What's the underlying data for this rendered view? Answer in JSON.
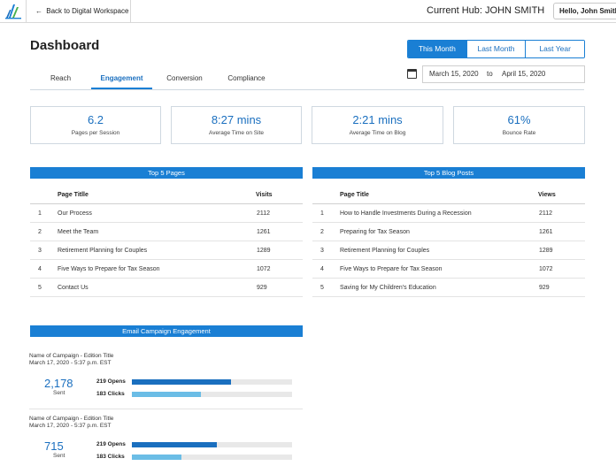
{
  "topbar": {
    "back_label": "Back to Digital Workspace",
    "hub_label": "Current Hub: JOHN SMITH",
    "user_label": "Hello, John Smith!"
  },
  "page": {
    "title": "Dashboard"
  },
  "range_toggle": {
    "options": [
      "This Month",
      "Last Month",
      "Last Year"
    ],
    "active": "This Month"
  },
  "tabs": {
    "items": [
      "Reach",
      "Engagement",
      "Conversion",
      "Compliance"
    ],
    "active": "Engagement"
  },
  "date_range": {
    "start": "March 15, 2020",
    "separator": "to",
    "end": "April 15, 2020"
  },
  "kpis": [
    {
      "value": "6.2",
      "label": "Pages per Session"
    },
    {
      "value": "8:27 mins",
      "label": "Average Time on Site"
    },
    {
      "value": "2:21 mins",
      "label": "Average Time on Blog"
    },
    {
      "value": "61%",
      "label": "Bounce Rate"
    }
  ],
  "top_pages": {
    "title": "Top 5 Pages",
    "col_title": "Page Titlle",
    "col_value": "Visits",
    "rows": [
      {
        "num": "1",
        "title": "Our Process",
        "value": "2112"
      },
      {
        "num": "2",
        "title": "Meet the Team",
        "value": "1261"
      },
      {
        "num": "3",
        "title": "Retirement Planning for Couples",
        "value": "1289"
      },
      {
        "num": "4",
        "title": "Five Ways to Prepare for Tax Season",
        "value": "1072"
      },
      {
        "num": "5",
        "title": "Contact Us",
        "value": "929"
      }
    ]
  },
  "top_posts": {
    "title": "Top 5 Blog Posts",
    "col_title": "Page Title",
    "col_value": "Views",
    "rows": [
      {
        "num": "1",
        "title": "How to Handle Investments During a Recession",
        "value": "2112"
      },
      {
        "num": "2",
        "title": "Preparing for Tax Season",
        "value": "1261"
      },
      {
        "num": "3",
        "title": "Retirement Planning for Couples",
        "value": "1289"
      },
      {
        "num": "4",
        "title": "Five Ways to Prepare for Tax Season",
        "value": "1072"
      },
      {
        "num": "5",
        "title": "Saving for My Children's Education",
        "value": "929"
      }
    ]
  },
  "email": {
    "title": "Email Campaign Engagement",
    "campaigns": [
      {
        "name": "Name of Campaign - Edition Title",
        "date": "March 17, 2020 - 5:37 p.m. EST",
        "sent": "2,178",
        "sent_label": "Sent",
        "opens_label": "219 Opens",
        "clicks_label": "183 Clicks",
        "opens_fraction": 0.62,
        "clicks_fraction": 0.43
      },
      {
        "name": "Name of Campaign - Edition Title",
        "date": "March 17, 2020 - 5:37 p.m. EST",
        "sent": "715",
        "sent_label": "Sent",
        "opens_label": "219 Opens",
        "clicks_label": "183 Clicks",
        "opens_fraction": 0.53,
        "clicks_fraction": 0.31
      }
    ]
  },
  "colors": {
    "accent": "#1a7fd4",
    "accent_text": "#1a6fbf",
    "clicks_bar": "#6bbde6",
    "track": "#e8e8e8"
  },
  "icons": {
    "logo": "brand-logo-icon",
    "back": "arrow-left-icon",
    "calendar": "calendar-icon"
  }
}
